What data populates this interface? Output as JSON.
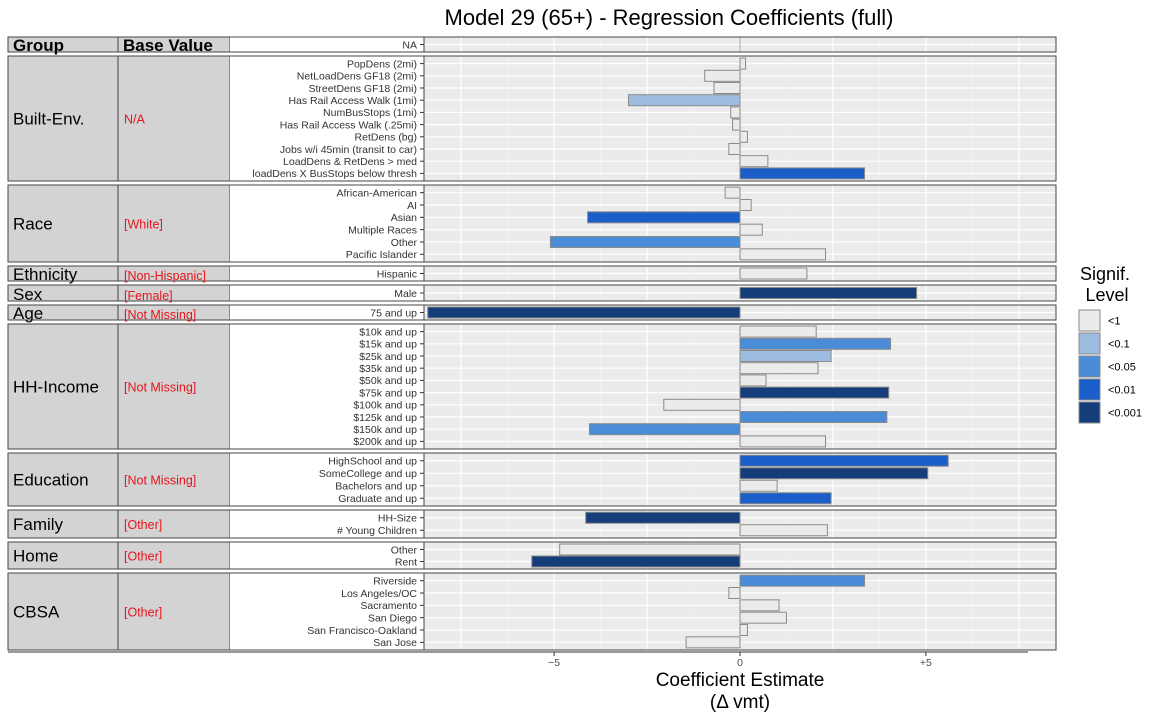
{
  "chart_data": {
    "type": "bar",
    "orientation": "horizontal",
    "title": "Model 29 (65+) - Regression Coefficients (full)",
    "xlabel_line1": "Coefficient Estimate",
    "xlabel_line2": "(Δ vmt)",
    "xlim": [
      -8.5,
      8.5
    ],
    "xticks": [
      {
        "value": -5,
        "label": "−5"
      },
      {
        "value": 0,
        "label": "0"
      },
      {
        "value": 5,
        "label": "+5"
      }
    ],
    "grid": true,
    "header": {
      "group": "Group",
      "base": "Base Value"
    },
    "legend": {
      "title_line1": "Signif.",
      "title_line2": "Level",
      "position": "right",
      "levels": [
        {
          "key": "lt1",
          "label": "<1",
          "color": "#ebebeb"
        },
        {
          "key": "lt01",
          "label": "<0.1",
          "color": "#9dbde0"
        },
        {
          "key": "lt005",
          "label": "<0.05",
          "color": "#4a8cd8"
        },
        {
          "key": "lt001",
          "label": "<0.01",
          "color": "#1a5fc9"
        },
        {
          "key": "lt0001",
          "label": "<0.001",
          "color": "#143d7a"
        }
      ]
    },
    "groups": [
      {
        "name": "",
        "base": "",
        "rows": [
          {
            "label": "NA",
            "value": null,
            "sig": null
          }
        ]
      },
      {
        "name": "Built-Env.",
        "base": "N/A",
        "rows": [
          {
            "label": "PopDens (2mi)",
            "value": 0.15,
            "sig": "lt1"
          },
          {
            "label": "NetLoadDens GF18 (2mi)",
            "value": -0.95,
            "sig": "lt1"
          },
          {
            "label": "StreetDens GF18 (2mi)",
            "value": -0.7,
            "sig": "lt1"
          },
          {
            "label": "Has Rail Access Walk (1mi)",
            "value": -3.0,
            "sig": "lt01"
          },
          {
            "label": "NumBusStops (1mi)",
            "value": -0.25,
            "sig": "lt1"
          },
          {
            "label": "Has Rail Access Walk (.25mi)",
            "value": -0.2,
            "sig": "lt1"
          },
          {
            "label": "RetDens (bg)",
            "value": 0.2,
            "sig": "lt1"
          },
          {
            "label": "Jobs w/i 45min (transit to car)",
            "value": -0.3,
            "sig": "lt1"
          },
          {
            "label": "LoadDens & RetDens > med",
            "value": 0.75,
            "sig": "lt1"
          },
          {
            "label": "loadDens X BusStops below thresh",
            "value": 3.35,
            "sig": "lt001"
          }
        ]
      },
      {
        "name": "Race",
        "base": "[White]",
        "rows": [
          {
            "label": "African-American",
            "value": -0.4,
            "sig": "lt1"
          },
          {
            "label": "AI",
            "value": 0.3,
            "sig": "lt1"
          },
          {
            "label": "Asian",
            "value": -4.1,
            "sig": "lt001"
          },
          {
            "label": "Multiple Races",
            "value": 0.6,
            "sig": "lt1"
          },
          {
            "label": "Other",
            "value": -5.1,
            "sig": "lt005"
          },
          {
            "label": "Pacific Islander",
            "value": 2.3,
            "sig": "lt1"
          }
        ]
      },
      {
        "name": "Ethnicity",
        "base": "[Non-Hispanic]",
        "rows": [
          {
            "label": "Hispanic",
            "value": 1.8,
            "sig": "lt1"
          }
        ]
      },
      {
        "name": "Sex",
        "base": "[Female]",
        "rows": [
          {
            "label": "Male",
            "value": 4.75,
            "sig": "lt0001"
          }
        ]
      },
      {
        "name": "Age",
        "base": "[Not Missing]",
        "rows": [
          {
            "label": "75 and up",
            "value": -8.4,
            "sig": "lt0001"
          }
        ]
      },
      {
        "name": "HH-Income",
        "base": "[Not Missing]",
        "rows": [
          {
            "label": "$10k and up",
            "value": 2.05,
            "sig": "lt1"
          },
          {
            "label": "$15k and up",
            "value": 4.05,
            "sig": "lt005"
          },
          {
            "label": "$25k and up",
            "value": 2.45,
            "sig": "lt01"
          },
          {
            "label": "$35k and up",
            "value": 2.1,
            "sig": "lt1"
          },
          {
            "label": "$50k and up",
            "value": 0.7,
            "sig": "lt1"
          },
          {
            "label": "$75k and up",
            "value": 4.0,
            "sig": "lt0001"
          },
          {
            "label": "$100k and up",
            "value": -2.05,
            "sig": "lt1"
          },
          {
            "label": "$125k and up",
            "value": 3.95,
            "sig": "lt005"
          },
          {
            "label": "$150k and up",
            "value": -4.05,
            "sig": "lt005"
          },
          {
            "label": "$200k and up",
            "value": 2.3,
            "sig": "lt1"
          }
        ]
      },
      {
        "name": "Education",
        "base": "[Not Missing]",
        "rows": [
          {
            "label": "HighSchool and up",
            "value": 5.6,
            "sig": "lt001"
          },
          {
            "label": "SomeCollege and up",
            "value": 5.05,
            "sig": "lt0001"
          },
          {
            "label": "Bachelors and up",
            "value": 1.0,
            "sig": "lt1"
          },
          {
            "label": "Graduate and up",
            "value": 2.45,
            "sig": "lt001"
          }
        ]
      },
      {
        "name": "Family",
        "base": "[Other]",
        "rows": [
          {
            "label": "HH-Size",
            "value": -4.15,
            "sig": "lt0001"
          },
          {
            "label": "# Young Children",
            "value": 2.35,
            "sig": "lt1"
          }
        ]
      },
      {
        "name": "Home",
        "base": "[Other]",
        "rows": [
          {
            "label": "Other",
            "value": -4.85,
            "sig": "lt1"
          },
          {
            "label": "Rent",
            "value": -5.6,
            "sig": "lt0001"
          }
        ]
      },
      {
        "name": "CBSA",
        "base": "[Other]",
        "rows": [
          {
            "label": "Riverside",
            "value": 3.35,
            "sig": "lt005"
          },
          {
            "label": "Los Angeles/OC",
            "value": -0.3,
            "sig": "lt1"
          },
          {
            "label": "Sacramento",
            "value": 1.05,
            "sig": "lt1"
          },
          {
            "label": "San Diego",
            "value": 1.25,
            "sig": "lt1"
          },
          {
            "label": "San Francisco-Oakland",
            "value": 0.2,
            "sig": "lt1"
          },
          {
            "label": "San Jose",
            "value": -1.45,
            "sig": "lt1"
          }
        ]
      }
    ]
  }
}
